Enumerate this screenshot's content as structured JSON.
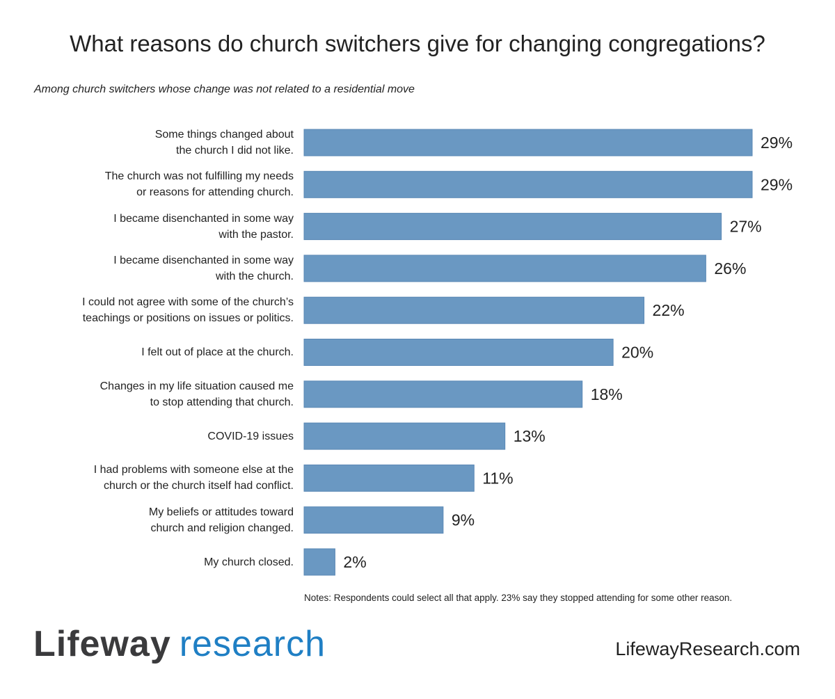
{
  "chart_data": {
    "type": "bar",
    "orientation": "horizontal",
    "title": "What reasons do church switchers give for changing congregations?",
    "subtitle": "Among church switchers whose change was not related to a residential move",
    "categories": [
      "Some things changed about\nthe church I did not like.",
      "The church was not fulfilling my needs\nor reasons for attending church.",
      "I became disenchanted in some way\nwith the pastor.",
      "I became disenchanted in some way\nwith the church.",
      "I could not agree with some of the church’s\nteachings or positions on issues or politics.",
      "I felt out of place at the church.",
      "Changes in my life situation caused me\nto stop attending that church.",
      "COVID-19 issues",
      "I had problems with someone else at the\nchurch or the church itself had conflict.",
      "My beliefs or attitudes toward\nchurch and religion changed.",
      "My church closed."
    ],
    "values": [
      29,
      29,
      27,
      26,
      22,
      20,
      18,
      13,
      11,
      9,
      2
    ],
    "data_labels": [
      "29%",
      "29%",
      "27%",
      "26%",
      "22%",
      "20%",
      "18%",
      "13%",
      "11%",
      "9%",
      "2%"
    ],
    "xlim": [
      0,
      29
    ],
    "grid": false,
    "bar_color": "#6a98c2",
    "bar_border_color": "#5a88b5"
  },
  "notes": "Notes: Respondents could select all that apply. 23% say they stopped attending for some other reason.",
  "logo": {
    "part1": "Lifeway",
    "part2": "research",
    "color1": "#3a3a3c",
    "color2": "#1f7fc4"
  },
  "url": "LifewayResearch.com"
}
